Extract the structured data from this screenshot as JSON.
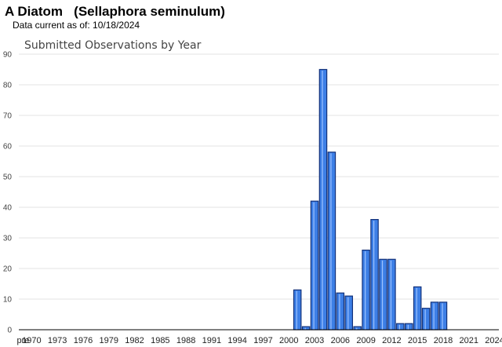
{
  "header": {
    "title": "A Diatom   (Sellaphora seminulum)",
    "subtitle": "Data current as of: 10/18/2024"
  },
  "colors": {
    "bar_fill": "#3d7fe6",
    "bar_stroke": "#12317a",
    "grid": "#e3e3e3"
  },
  "chart_data": {
    "type": "bar",
    "title": "Submitted Observations by Year",
    "xlabel": "",
    "ylabel": "",
    "ylim": [
      0,
      90
    ],
    "yticks": [
      0,
      10,
      20,
      30,
      40,
      50,
      60,
      70,
      80,
      90
    ],
    "grid": true,
    "xtick_labels": [
      "pre",
      "1970",
      "1973",
      "1976",
      "1979",
      "1982",
      "1985",
      "1988",
      "1991",
      "1994",
      "1997",
      "2000",
      "2003",
      "2006",
      "2009",
      "2012",
      "2015",
      "2018",
      "2021",
      "2024"
    ],
    "categories": [
      "pre",
      "1970",
      "1971",
      "1972",
      "1973",
      "1974",
      "1975",
      "1976",
      "1977",
      "1978",
      "1979",
      "1980",
      "1981",
      "1982",
      "1983",
      "1984",
      "1985",
      "1986",
      "1987",
      "1988",
      "1989",
      "1990",
      "1991",
      "1992",
      "1993",
      "1994",
      "1995",
      "1996",
      "1997",
      "1998",
      "1999",
      "2000",
      "2001",
      "2002",
      "2003",
      "2004",
      "2005",
      "2006",
      "2007",
      "2008",
      "2009",
      "2010",
      "2011",
      "2012",
      "2013",
      "2014",
      "2015",
      "2016",
      "2017",
      "2018",
      "2019",
      "2020",
      "2021",
      "2022",
      "2023",
      "2024"
    ],
    "values": [
      0,
      0,
      0,
      0,
      0,
      0,
      0,
      0,
      0,
      0,
      0,
      0,
      0,
      0,
      0,
      0,
      0,
      0,
      0,
      0,
      0,
      0,
      0,
      0,
      0,
      0,
      0,
      0,
      0,
      0,
      0,
      0,
      13,
      1,
      42,
      85,
      58,
      12,
      11,
      1,
      26,
      36,
      23,
      23,
      2,
      2,
      14,
      7,
      9,
      9,
      0,
      0,
      0,
      0,
      0,
      0
    ]
  }
}
